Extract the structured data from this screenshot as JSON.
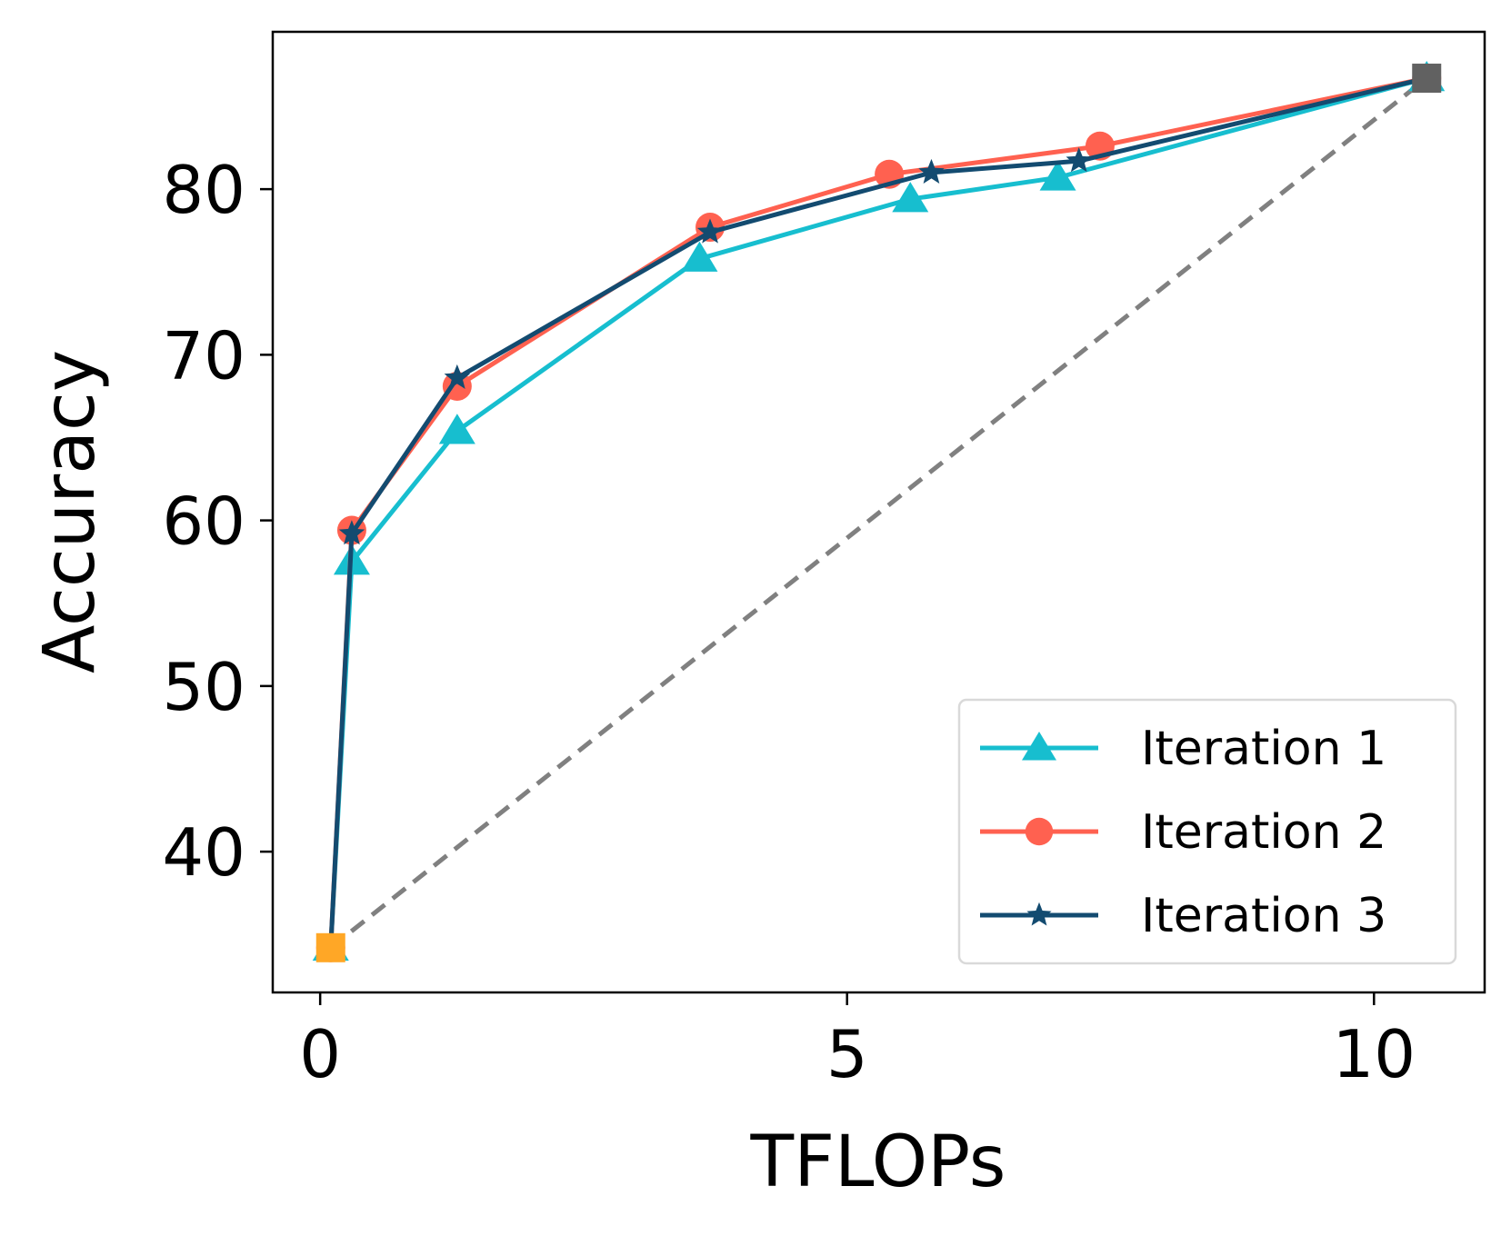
{
  "chart_data": {
    "type": "line",
    "title": "",
    "xlabel": "TFLOPs",
    "ylabel": "Accuracy",
    "xlim": [
      -0.45,
      11.05
    ],
    "ylim": [
      31.5,
      89.5
    ],
    "xticks": [
      0,
      5,
      10
    ],
    "yticks": [
      40,
      50,
      60,
      70,
      80
    ],
    "xtick_labels": [
      "0",
      "5",
      "10"
    ],
    "ytick_labels": [
      "40",
      "50",
      "60",
      "70",
      "80"
    ],
    "grid": false,
    "legend_position": "bottom-right",
    "series": [
      {
        "name": "Iteration 1",
        "color": "#17becf",
        "marker": "triangle",
        "x": [
          0.1,
          0.3,
          1.3,
          3.6,
          5.6,
          7.0,
          10.5
        ],
        "y": [
          34.2,
          57.5,
          65.4,
          75.8,
          79.4,
          80.7,
          86.7
        ]
      },
      {
        "name": "Iteration 2",
        "color": "#ff6150",
        "marker": "circle",
        "x": [
          0.1,
          0.3,
          1.3,
          3.7,
          5.4,
          7.4,
          10.5
        ],
        "y": [
          34.2,
          59.4,
          68.1,
          77.7,
          80.9,
          82.6,
          86.7
        ]
      },
      {
        "name": "Iteration 3",
        "color": "#134b70",
        "marker": "star",
        "x": [
          0.1,
          0.3,
          1.3,
          3.7,
          5.8,
          7.2,
          10.5
        ],
        "y": [
          34.2,
          59.2,
          68.6,
          77.4,
          81.0,
          81.7,
          86.7
        ]
      }
    ],
    "reference_line": {
      "style": "dashed",
      "color": "#808080",
      "x": [
        0.1,
        10.5
      ],
      "y": [
        34.2,
        86.7
      ]
    },
    "endpoint_markers": [
      {
        "label": "start",
        "x": 0.1,
        "y": 34.2,
        "color": "#ffa726",
        "marker": "square"
      },
      {
        "label": "end",
        "x": 10.5,
        "y": 86.7,
        "color": "#616161",
        "marker": "square"
      }
    ]
  }
}
